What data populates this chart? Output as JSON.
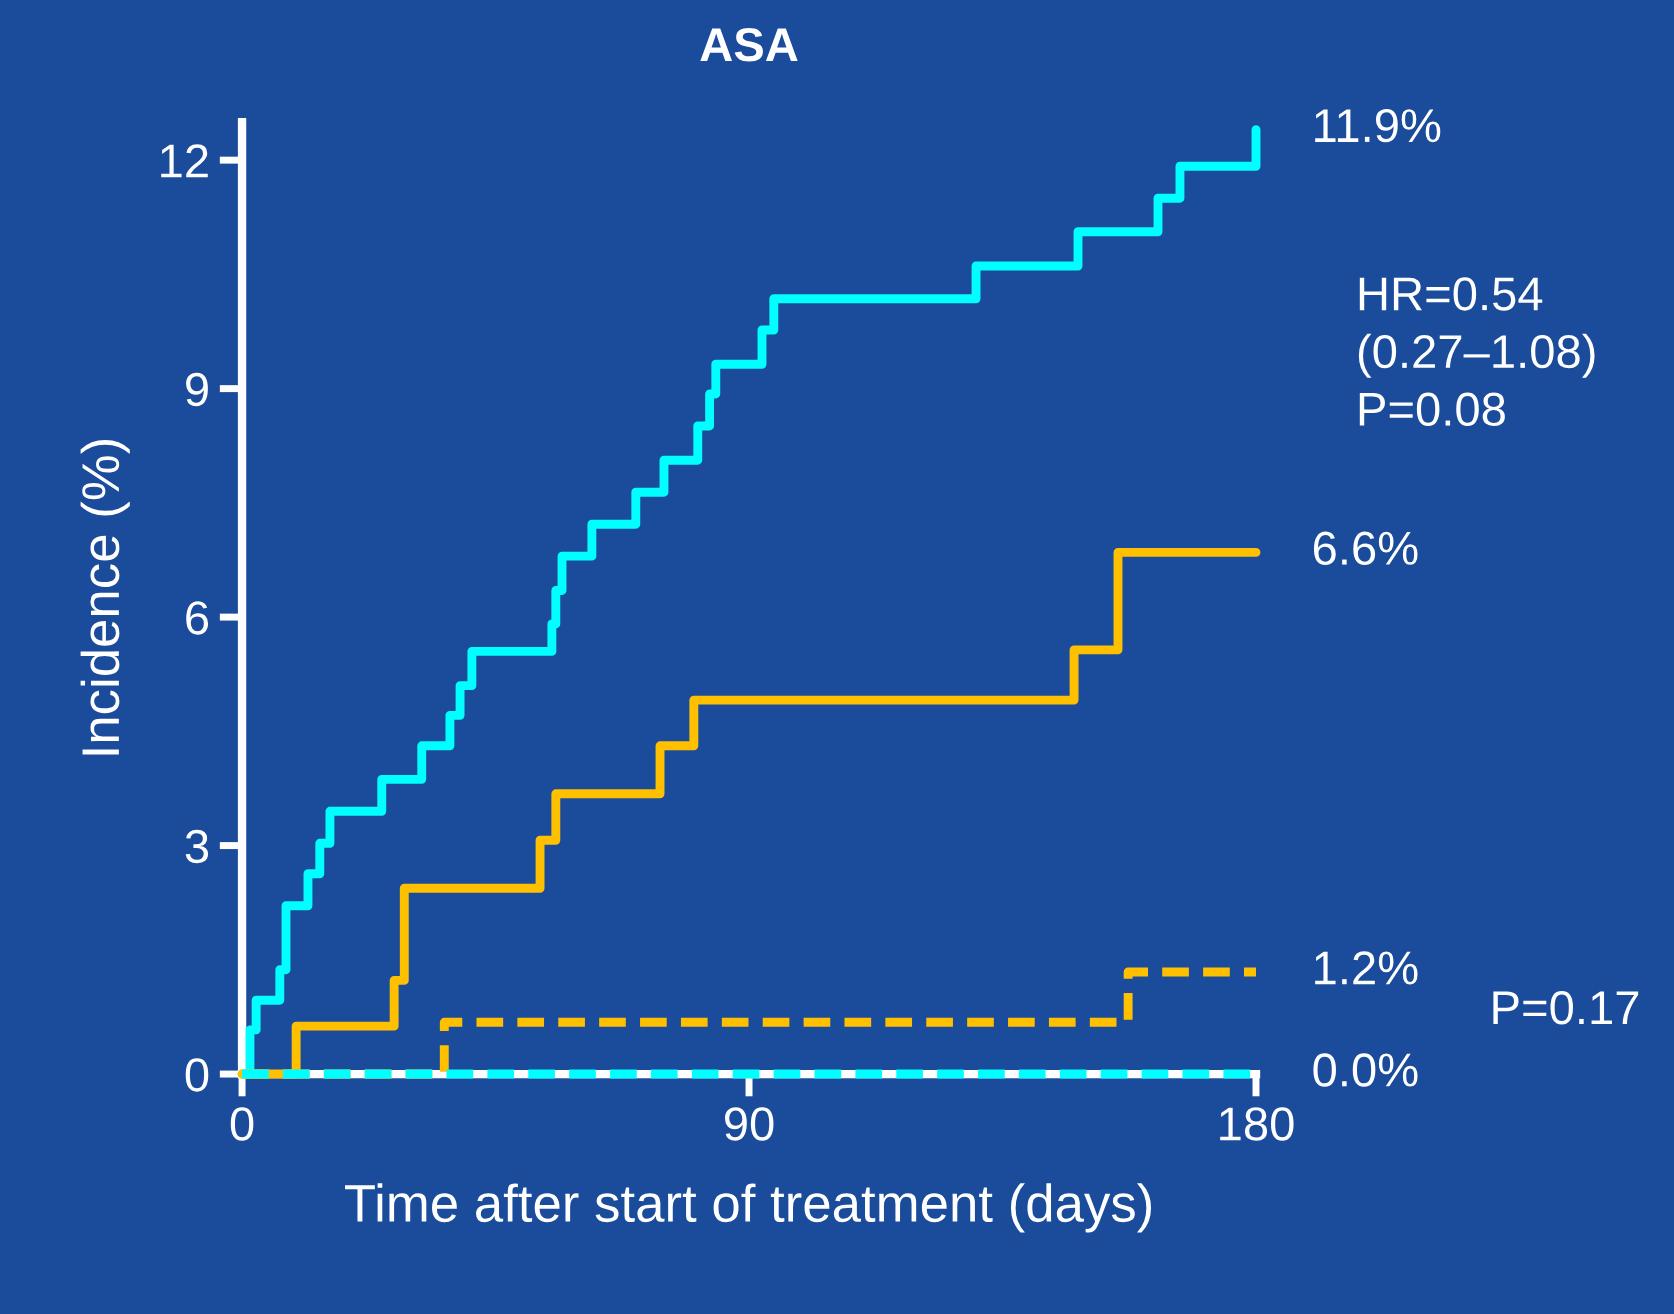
{
  "chart_data": {
    "type": "step",
    "title": "ASA",
    "xlabel": "Time after start of treatment (days)",
    "ylabel": "Incidence (%)",
    "xlim": [
      0,
      180
    ],
    "ylim": [
      0,
      12.5
    ],
    "xticks": [
      0,
      90,
      180
    ],
    "yticks": [
      0,
      3,
      6,
      9,
      12
    ],
    "grid": false,
    "legend": false,
    "series": [
      {
        "color": "#00ffff",
        "line_style": "solid",
        "x": [
          0,
          1.4,
          2.5,
          6.7,
          7.8,
          11.7,
          13.8,
          15.6,
          24.8,
          31.9,
          36.9,
          38.7,
          40.8,
          55.0,
          55.7,
          56.8,
          62.1,
          69.9,
          74.9,
          80.9,
          83.0,
          84.1,
          92.3,
          94.4,
          130.3,
          148.4,
          162.6,
          166.5,
          180
        ],
        "values": [
          0,
          0.58,
          0.97,
          1.37,
          2.21,
          2.63,
          3.03,
          3.45,
          3.87,
          4.31,
          4.71,
          5.1,
          5.55,
          5.91,
          6.35,
          6.8,
          7.22,
          7.64,
          8.06,
          8.51,
          8.93,
          9.32,
          9.77,
          10.18,
          10.61,
          11.06,
          11.5,
          11.92,
          12.4
        ]
      },
      {
        "color": "#ffc000",
        "line_style": "solid",
        "x": [
          0,
          9.6,
          27.0,
          28.8,
          52.9,
          55.7,
          74.2,
          80.2,
          147.7,
          155.5,
          180
        ],
        "values": [
          0,
          0.63,
          1.23,
          2.44,
          3.07,
          3.68,
          4.31,
          4.91,
          5.57,
          6.85,
          6.85
        ]
      },
      {
        "color": "#ffc000",
        "line_style": "dashed",
        "x": [
          0,
          35.9,
          157.3,
          180
        ],
        "values": [
          0,
          0.68,
          1.34,
          1.34
        ]
      },
      {
        "color": "#00ffff",
        "line_style": "dashed",
        "x": [
          0,
          180
        ],
        "values": [
          0,
          0
        ]
      }
    ],
    "annotations": [
      "11.9%",
      "6.6%",
      "1.2%",
      "0.0%",
      "HR=0.54\n(0.27–1.08)\nP=0.08",
      "P=0.17"
    ]
  }
}
